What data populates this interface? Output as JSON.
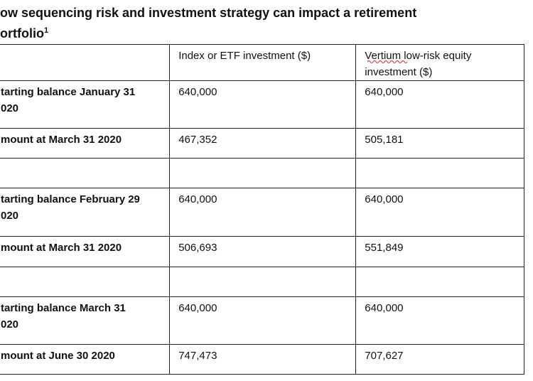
{
  "header": {
    "title_lines": [
      "ow sequencing risk and investment strategy can impact a retirement",
      "ortfolio"
    ],
    "footnote_mark": "1"
  },
  "table": {
    "columns": [
      "Index or ETF investment ($)",
      "Vertium low-risk equity\ninvestment ($)"
    ],
    "rows": [
      [
        "tarting balance January 31\n020",
        "640,000",
        "640,000"
      ],
      [
        "mount at March 31 2020",
        "467,352",
        "505,181"
      ],
      [
        "tarting balance February 29\n020",
        "640,000",
        "640,000"
      ],
      [
        "mount at March 31 2020",
        "506,693",
        "551,849"
      ],
      [
        "tarting balance March 31\n020",
        "640,000",
        "640,000"
      ],
      [
        "mount at June 30 2020",
        "747,473",
        "707,627"
      ]
    ]
  }
}
